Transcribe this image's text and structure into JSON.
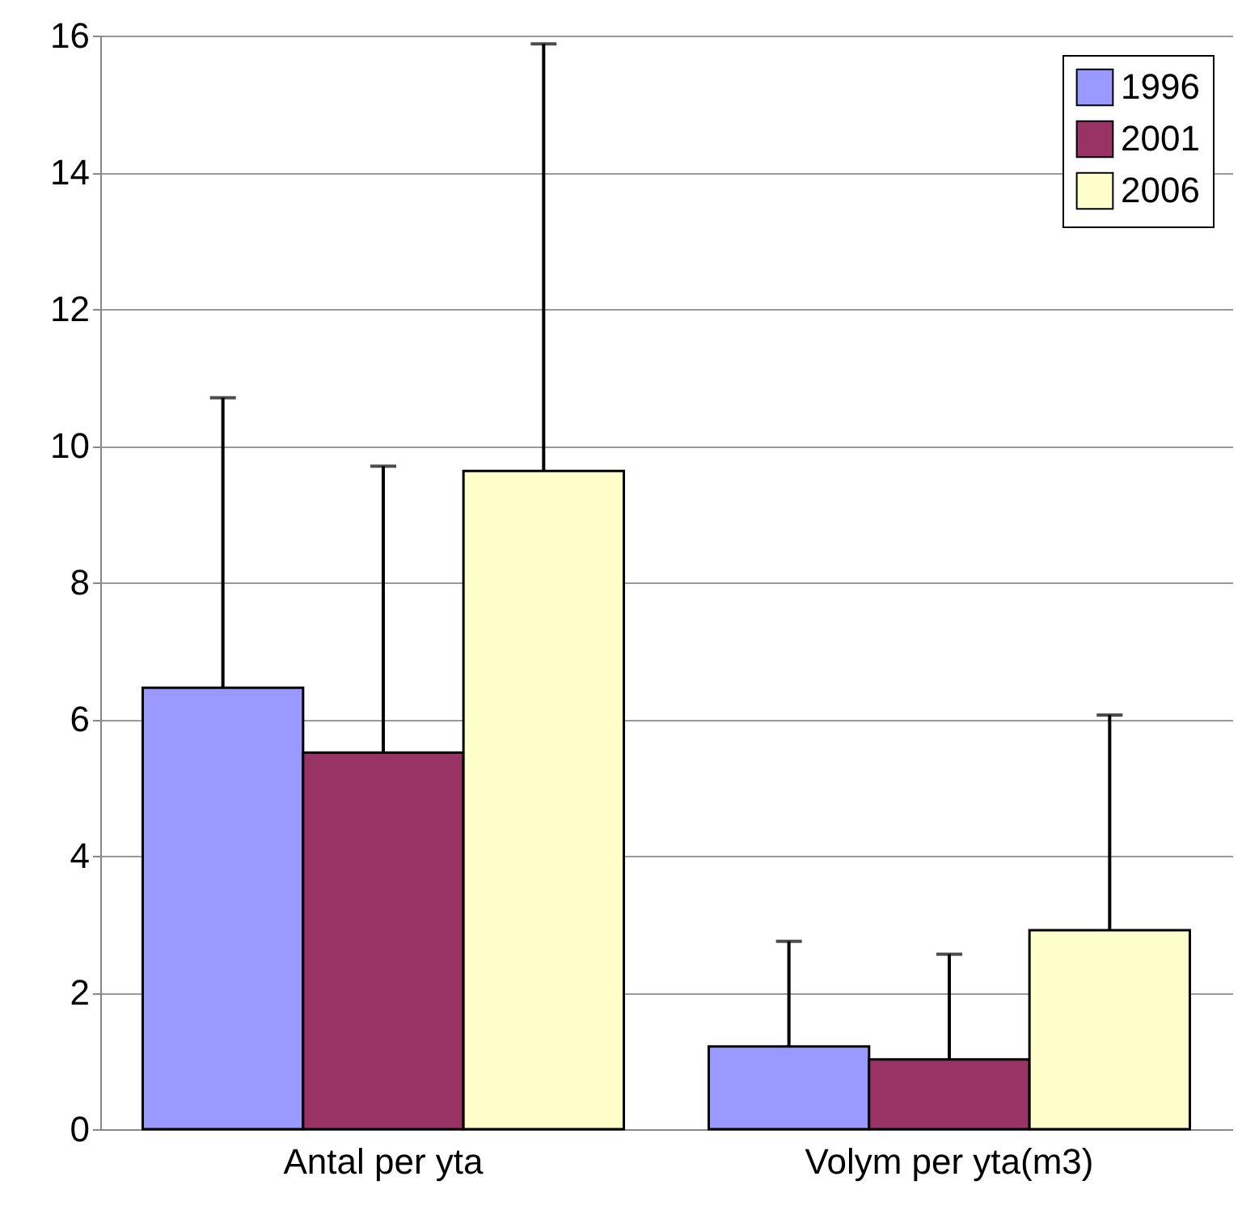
{
  "chart_data": {
    "type": "bar",
    "categories": [
      "Antal per yta",
      "Volym per yta(m3)"
    ],
    "series": [
      {
        "name": "1996",
        "color": "#9999ff",
        "values": [
          6.46,
          1.21
        ],
        "errors": [
          [
            6.46,
            10.7
          ],
          [
            1.21,
            2.75
          ]
        ]
      },
      {
        "name": "2001",
        "color": "#993366",
        "values": [
          5.51,
          1.02
        ],
        "errors": [
          [
            5.51,
            9.7
          ],
          [
            1.02,
            2.56
          ]
        ]
      },
      {
        "name": "2006",
        "color": "#ffffcc",
        "values": [
          9.63,
          2.91
        ],
        "errors": [
          [
            9.63,
            15.88
          ],
          [
            2.91,
            6.06
          ]
        ]
      }
    ],
    "ylim": [
      0,
      16
    ],
    "yticks": [
      0,
      2,
      4,
      6,
      8,
      10,
      12,
      14,
      16
    ],
    "grid": "y",
    "legend": "top right"
  }
}
